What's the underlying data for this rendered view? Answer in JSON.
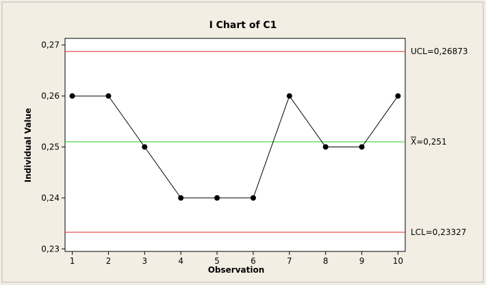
{
  "chart_data": {
    "type": "line",
    "title": "I Chart of C1",
    "xlabel": "Observation",
    "ylabel": "Individual Value",
    "x": [
      1,
      2,
      3,
      4,
      5,
      6,
      7,
      8,
      9,
      10
    ],
    "x_tick_labels": [
      "1",
      "2",
      "3",
      "4",
      "5",
      "6",
      "7",
      "8",
      "9",
      "10"
    ],
    "series": [
      {
        "values": [
          0.26,
          0.26,
          0.25,
          0.24,
          0.24,
          0.24,
          0.26,
          0.25,
          0.25,
          0.26
        ]
      }
    ],
    "y_ticks": [
      0.23,
      0.24,
      0.25,
      0.26,
      0.27
    ],
    "y_tick_labels": [
      "0,23",
      "0,24",
      "0,25",
      "0,26",
      "0,27"
    ],
    "xlim": [
      0.8,
      10.2
    ],
    "ylim": [
      0.2295,
      0.2713
    ],
    "grid": false,
    "reference_lines": [
      {
        "label": "UCL=0,26873",
        "value": 0.26873,
        "color": "#e02020"
      },
      {
        "label": "X=0,251",
        "value": 0.251,
        "color": "#22cc22",
        "overbar_on_first_char": true
      },
      {
        "label": "LCL=0,23327",
        "value": 0.23327,
        "color": "#e02020"
      }
    ],
    "colors": {
      "background": "#f2eee4",
      "plot_background": "#ffffff",
      "frame": "#b9b9b9",
      "line": "#000000"
    }
  }
}
